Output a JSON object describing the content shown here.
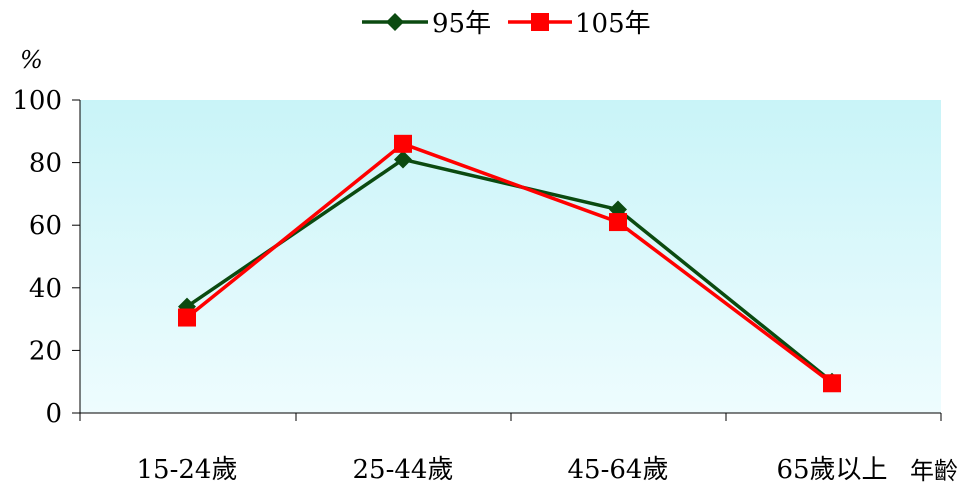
{
  "chart_data": {
    "type": "line",
    "title": "",
    "y_unit_label": "%",
    "xlabel": "年齡",
    "ylabel": "",
    "categories": [
      "15-24歲",
      "25-44歲",
      "45-64歲",
      "65歲以上"
    ],
    "ylim": [
      0,
      100
    ],
    "yticks": [
      0,
      20,
      40,
      60,
      80,
      100
    ],
    "grid": false,
    "legend_position": "top-center",
    "series": [
      {
        "name": "95年",
        "values": [
          34,
          81,
          65,
          10
        ],
        "color": "#0b4a10",
        "marker": "diamond"
      },
      {
        "name": "105年",
        "values": [
          30.5,
          86,
          61,
          9.5
        ],
        "color": "#ff0000",
        "marker": "square"
      }
    ],
    "plot_background": [
      "#c9f4f8",
      "#eefcfe"
    ]
  }
}
